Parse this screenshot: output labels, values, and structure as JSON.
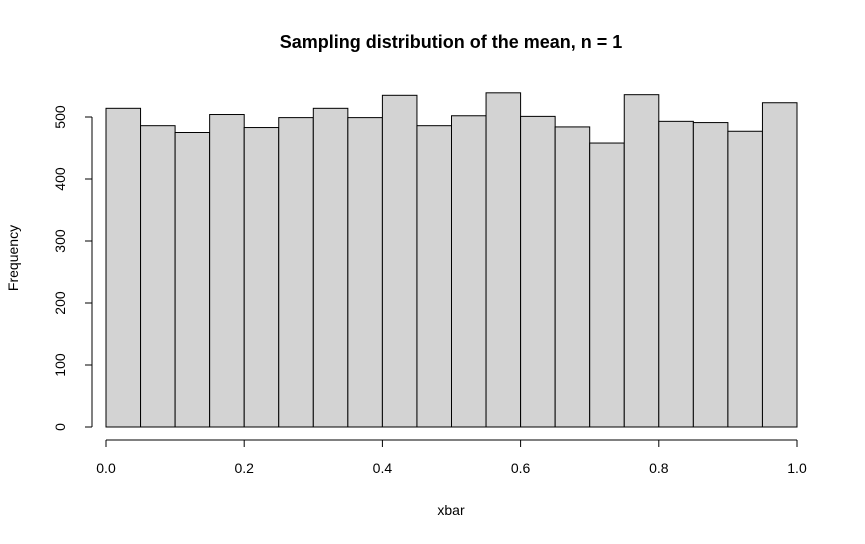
{
  "chart_data": {
    "type": "bar",
    "title": "Sampling distribution of the mean, n = 1",
    "xlabel": "xbar",
    "ylabel": "Frequency",
    "bin_edges": [
      0.0,
      0.05,
      0.1,
      0.15,
      0.2,
      0.25,
      0.3,
      0.35,
      0.4,
      0.45,
      0.5,
      0.55,
      0.6,
      0.65,
      0.7,
      0.75,
      0.8,
      0.85,
      0.9,
      0.95,
      1.0
    ],
    "values": [
      514,
      486,
      475,
      504,
      483,
      499,
      514,
      499,
      535,
      486,
      502,
      539,
      501,
      484,
      458,
      536,
      493,
      491,
      477,
      523
    ],
    "xlim": [
      0,
      1
    ],
    "ylim": [
      0,
      539
    ],
    "x_ticks": [
      0.0,
      0.2,
      0.4,
      0.6,
      0.8,
      1.0
    ],
    "x_tick_labels": [
      "0.0",
      "0.2",
      "0.4",
      "0.6",
      "0.8",
      "1.0"
    ],
    "y_ticks": [
      0,
      100,
      200,
      300,
      400,
      500
    ],
    "y_tick_labels": [
      "0",
      "100",
      "200",
      "300",
      "400",
      "500"
    ],
    "grid": false,
    "legend": "none",
    "bar_fill": "#d3d3d3",
    "bar_stroke": "#000000"
  }
}
